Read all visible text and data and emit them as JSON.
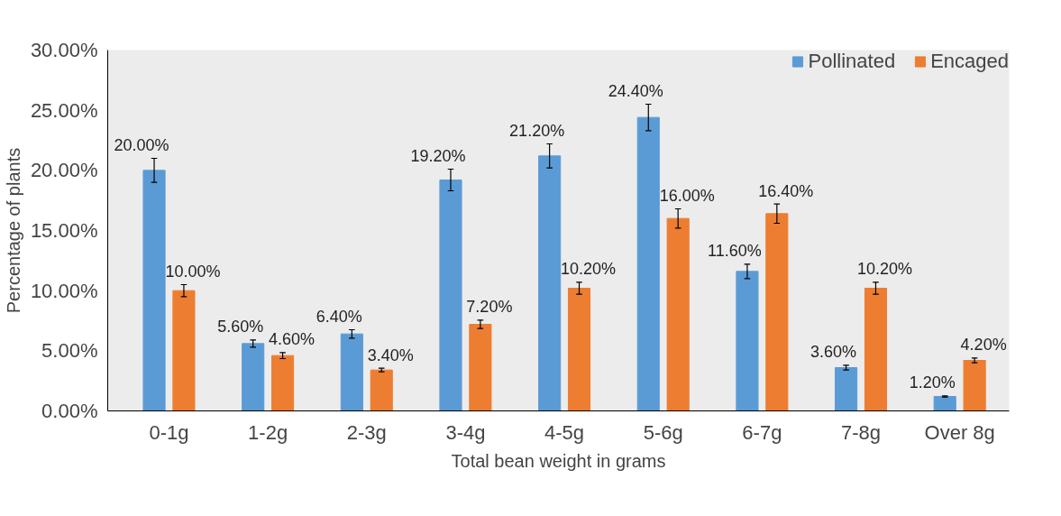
{
  "chart_data": {
    "type": "bar",
    "xlabel": "Total bean weight in grams",
    "ylabel": "Percentage of plants",
    "categories": [
      "0-1g",
      "1-2g",
      "2-3g",
      "3-4g",
      "4-5g",
      "5-6g",
      "6-7g",
      "7-8g",
      "Over 8g"
    ],
    "series": [
      {
        "name": "Pollinated",
        "color": "#5b9bd5",
        "values": [
          20.0,
          5.6,
          6.4,
          19.2,
          21.2,
          24.4,
          11.6,
          3.6,
          1.2
        ],
        "errors": [
          1.0,
          0.3,
          0.35,
          0.9,
          1.0,
          1.1,
          0.6,
          0.2,
          0.05
        ],
        "value_labels": [
          "20.00%",
          "5.60%",
          "6.40%",
          "19.20%",
          "21.20%",
          "24.40%",
          "11.60%",
          "3.60%",
          "1.20%"
        ]
      },
      {
        "name": "Encaged",
        "color": "#ed7d31",
        "values": [
          10.0,
          4.6,
          3.4,
          7.2,
          10.2,
          16.0,
          16.4,
          10.2,
          4.2
        ],
        "errors": [
          0.5,
          0.25,
          0.15,
          0.35,
          0.5,
          0.8,
          0.8,
          0.5,
          0.2
        ],
        "value_labels": [
          "10.00%",
          "4.60%",
          "3.40%",
          "7.20%",
          "10.20%",
          "16.00%",
          "16.40%",
          "10.20%",
          "4.20%"
        ]
      }
    ],
    "ylim": [
      0,
      30
    ],
    "yticks": [
      {
        "value": 0,
        "label": "0.00%"
      },
      {
        "value": 5,
        "label": "5.00%"
      },
      {
        "value": 10,
        "label": "10.00%"
      },
      {
        "value": 15,
        "label": "15.00%"
      },
      {
        "value": 20,
        "label": "20.00%"
      },
      {
        "value": 25,
        "label": "25.00%"
      },
      {
        "value": 30,
        "label": "30.00%"
      }
    ],
    "grid": false,
    "legend": "top right"
  }
}
